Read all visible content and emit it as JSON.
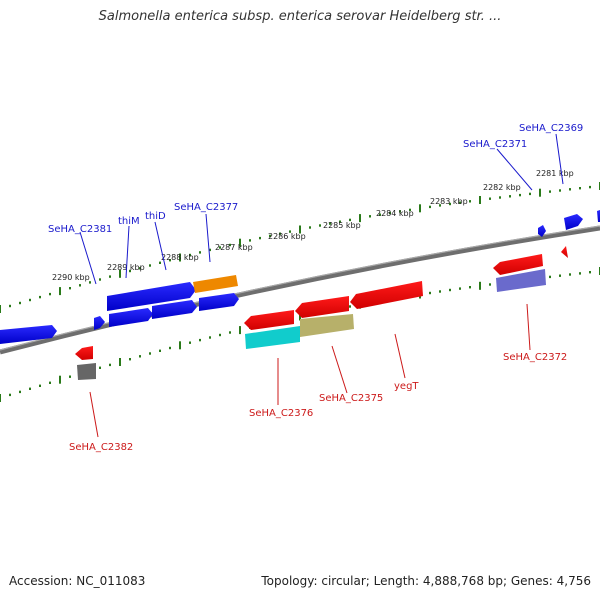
{
  "title": "Salmonella enterica subsp. enterica serovar Heidelberg str. ...",
  "accession": "Accession: NC_011083",
  "summary": "Topology: circular; Length: 4,888,768 bp; Genes: 4,756",
  "colors": {
    "forward_gene": "#0000ee",
    "reverse_gene": "#ee0000",
    "tick": "#2a7a1a",
    "backbone": "#777777",
    "forward_label": "#1a1acc",
    "reverse_label": "#cc1a1a",
    "orange_gene": "#ee8800",
    "cyan_gene": "#11cccc",
    "olive_gene": "#b7b06a",
    "purple_gene": "#6a6acc",
    "gray_gene": "#666666"
  },
  "kbp_labels": [
    "2290 kbp",
    "2289 kbp",
    "2288 kbp",
    "2287 kbp",
    "2286 kbp",
    "2285 kbp",
    "2284 kbp",
    "2283 kbp",
    "2282 kbp",
    "2281 kbp"
  ],
  "forward_labels": [
    "SeHA_C2381",
    "thiM",
    "thiD",
    "SeHA_C2377",
    "SeHA_C2371",
    "SeHA_C2369"
  ],
  "reverse_labels": [
    "SeHA_C2382",
    "SeHA_C2376",
    "SeHA_C2375",
    "yegT",
    "SeHA_C2372"
  ]
}
